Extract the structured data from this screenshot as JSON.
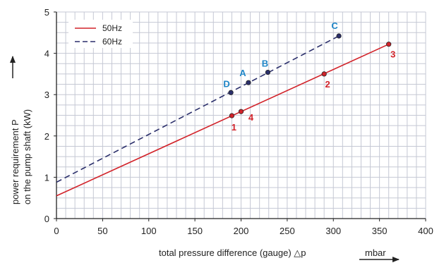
{
  "chart_data": {
    "type": "line",
    "xlabel": "total pressure difference (gauge) △p",
    "xunit": "mbar",
    "ylabel_line1": "power requirement P",
    "ylabel_line2": "on the pump shaft (kW)",
    "xlim": [
      0,
      400
    ],
    "ylim": [
      0,
      5
    ],
    "xticks": [
      "0",
      "50",
      "100",
      "150",
      "200",
      "250",
      "300",
      "350",
      "400"
    ],
    "yticks": [
      "0",
      "1",
      "2",
      "3",
      "4",
      "5"
    ],
    "grid": true,
    "legend_position": "top-left",
    "series": [
      {
        "name": "50Hz",
        "color": "#d2232a",
        "dash": "solid",
        "line": [
          [
            0,
            0.55
          ],
          [
            360,
            4.22
          ]
        ],
        "points": [
          {
            "label": "1",
            "x": 190,
            "y": 2.49
          },
          {
            "label": "4",
            "x": 200,
            "y": 2.59
          },
          {
            "label": "2",
            "x": 290,
            "y": 3.5
          },
          {
            "label": "3",
            "x": 360,
            "y": 4.22
          }
        ]
      },
      {
        "name": "60Hz",
        "color": "#2b2f6b",
        "dash": "dashed",
        "line": [
          [
            0,
            0.88
          ],
          [
            306,
            4.42
          ]
        ],
        "points": [
          {
            "label": "D",
            "x": 189,
            "y": 3.05
          },
          {
            "label": "A",
            "x": 208,
            "y": 3.29
          },
          {
            "label": "B",
            "x": 229,
            "y": 3.54
          },
          {
            "label": "C",
            "x": 306,
            "y": 4.42
          }
        ]
      }
    ]
  },
  "colors": {
    "grid": "#c5c8d4",
    "axis": "#222222",
    "label_50hz": "#d2232a",
    "label_60hz": "#1f86c7"
  }
}
